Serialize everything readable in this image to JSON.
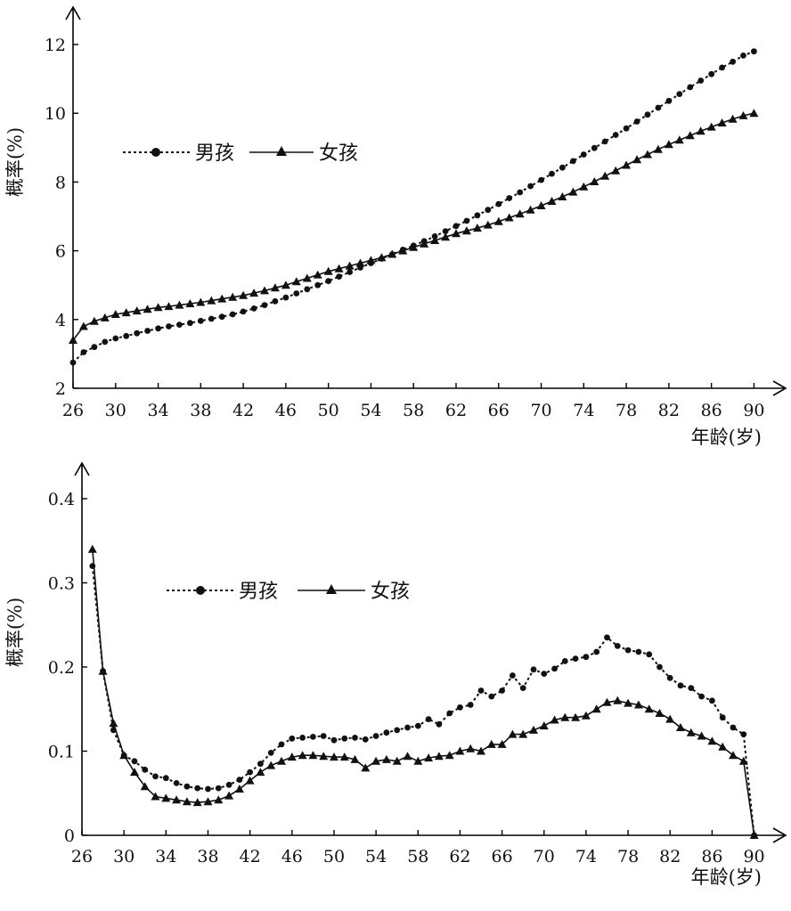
{
  "chart_data": [
    {
      "type": "line",
      "xlabel": "年龄(岁)",
      "ylabel": "概率(%)",
      "xlim": [
        26,
        92
      ],
      "ylim": [
        2,
        13
      ],
      "xticks": [
        "26",
        "30",
        "34",
        "38",
        "42",
        "46",
        "50",
        "54",
        "58",
        "62",
        "66",
        "70",
        "74",
        "78",
        "82",
        "86",
        "90"
      ],
      "yticks": [
        "2",
        "4",
        "6",
        "8",
        "10",
        "12"
      ],
      "legend": {
        "boys": "男孩",
        "girls": "女孩"
      },
      "series": [
        {
          "name": "男孩",
          "marker": "circle",
          "style": "dotted",
          "x": [
            26,
            27,
            28,
            29,
            30,
            31,
            32,
            33,
            34,
            35,
            36,
            37,
            38,
            39,
            40,
            41,
            42,
            43,
            44,
            45,
            46,
            47,
            48,
            49,
            50,
            51,
            52,
            53,
            54,
            55,
            56,
            57,
            58,
            59,
            60,
            61,
            62,
            63,
            64,
            65,
            66,
            67,
            68,
            69,
            70,
            71,
            72,
            73,
            74,
            75,
            76,
            77,
            78,
            79,
            80,
            81,
            82,
            83,
            84,
            85,
            86,
            87,
            88,
            89,
            90
          ],
          "y": [
            2.75,
            3.05,
            3.2,
            3.35,
            3.45,
            3.52,
            3.6,
            3.67,
            3.74,
            3.8,
            3.85,
            3.9,
            3.96,
            4.02,
            4.08,
            4.15,
            4.23,
            4.32,
            4.42,
            4.53,
            4.64,
            4.76,
            4.88,
            5.0,
            5.12,
            5.25,
            5.38,
            5.51,
            5.64,
            5.77,
            5.9,
            6.03,
            6.15,
            6.28,
            6.42,
            6.57,
            6.72,
            6.87,
            7.03,
            7.19,
            7.36,
            7.53,
            7.7,
            7.88,
            8.06,
            8.24,
            8.42,
            8.61,
            8.8,
            8.99,
            9.18,
            9.37,
            9.56,
            9.76,
            9.96,
            10.16,
            10.36,
            10.56,
            10.76,
            10.95,
            11.14,
            11.33,
            11.5,
            11.68,
            11.8
          ]
        },
        {
          "name": "女孩",
          "marker": "triangle",
          "style": "solid",
          "x": [
            26,
            27,
            28,
            29,
            30,
            31,
            32,
            33,
            34,
            35,
            36,
            37,
            38,
            39,
            40,
            41,
            42,
            43,
            44,
            45,
            46,
            47,
            48,
            49,
            50,
            51,
            52,
            53,
            54,
            55,
            56,
            57,
            58,
            59,
            60,
            61,
            62,
            63,
            64,
            65,
            66,
            67,
            68,
            69,
            70,
            71,
            72,
            73,
            74,
            75,
            76,
            77,
            78,
            79,
            80,
            81,
            82,
            83,
            84,
            85,
            86,
            87,
            88,
            89,
            90
          ],
          "y": [
            3.4,
            3.8,
            3.95,
            4.05,
            4.15,
            4.2,
            4.25,
            4.3,
            4.35,
            4.38,
            4.42,
            4.46,
            4.5,
            4.55,
            4.6,
            4.65,
            4.7,
            4.77,
            4.84,
            4.92,
            5.0,
            5.1,
            5.2,
            5.3,
            5.4,
            5.48,
            5.56,
            5.64,
            5.72,
            5.8,
            5.9,
            6.0,
            6.1,
            6.2,
            6.3,
            6.4,
            6.5,
            6.58,
            6.66,
            6.75,
            6.85,
            6.96,
            7.07,
            7.19,
            7.31,
            7.44,
            7.57,
            7.71,
            7.86,
            8.01,
            8.17,
            8.33,
            8.49,
            8.65,
            8.8,
            8.95,
            9.09,
            9.22,
            9.35,
            9.48,
            9.6,
            9.72,
            9.83,
            9.93,
            10.0
          ]
        }
      ]
    },
    {
      "type": "line",
      "xlabel": "年龄(岁)",
      "ylabel": "概率(%)",
      "xlim": [
        26,
        92
      ],
      "ylim": [
        0,
        0.43
      ],
      "xticks": [
        "26",
        "30",
        "34",
        "38",
        "42",
        "46",
        "50",
        "54",
        "58",
        "62",
        "66",
        "70",
        "74",
        "78",
        "82",
        "86",
        "90"
      ],
      "yticks": [
        "0",
        "0.1",
        "0.2",
        "0.3",
        "0.4"
      ],
      "legend": {
        "boys": "男孩",
        "girls": "女孩"
      },
      "series": [
        {
          "name": "男孩",
          "marker": "circle",
          "style": "dotted",
          "x": [
            27,
            28,
            29,
            30,
            31,
            32,
            33,
            34,
            35,
            36,
            37,
            38,
            39,
            40,
            41,
            42,
            43,
            44,
            45,
            46,
            47,
            48,
            49,
            50,
            51,
            52,
            53,
            54,
            55,
            56,
            57,
            58,
            59,
            60,
            61,
            62,
            63,
            64,
            65,
            66,
            67,
            68,
            69,
            70,
            71,
            72,
            73,
            74,
            75,
            76,
            77,
            78,
            79,
            80,
            81,
            82,
            83,
            84,
            85,
            86,
            87,
            88,
            89,
            90
          ],
          "y": [
            0.32,
            0.195,
            0.125,
            0.095,
            0.088,
            0.078,
            0.07,
            0.068,
            0.062,
            0.058,
            0.056,
            0.055,
            0.056,
            0.06,
            0.066,
            0.075,
            0.085,
            0.098,
            0.108,
            0.115,
            0.116,
            0.117,
            0.118,
            0.113,
            0.115,
            0.116,
            0.114,
            0.118,
            0.122,
            0.125,
            0.128,
            0.13,
            0.138,
            0.132,
            0.145,
            0.152,
            0.155,
            0.172,
            0.165,
            0.172,
            0.19,
            0.175,
            0.197,
            0.192,
            0.198,
            0.207,
            0.21,
            0.212,
            0.218,
            0.235,
            0.225,
            0.22,
            0.218,
            0.215,
            0.2,
            0.187,
            0.178,
            0.175,
            0.165,
            0.16,
            0.14,
            0.128,
            0.12,
            0.0
          ]
        },
        {
          "name": "女孩",
          "marker": "triangle",
          "style": "solid",
          "x": [
            27,
            28,
            29,
            30,
            31,
            32,
            33,
            34,
            35,
            36,
            37,
            38,
            39,
            40,
            41,
            42,
            43,
            44,
            45,
            46,
            47,
            48,
            49,
            50,
            51,
            52,
            53,
            54,
            55,
            56,
            57,
            58,
            59,
            60,
            61,
            62,
            63,
            64,
            65,
            66,
            67,
            68,
            69,
            70,
            71,
            72,
            73,
            74,
            75,
            76,
            77,
            78,
            79,
            80,
            81,
            82,
            83,
            84,
            85,
            86,
            87,
            88,
            89,
            90
          ],
          "y": [
            0.34,
            0.195,
            0.133,
            0.095,
            0.075,
            0.058,
            0.046,
            0.044,
            0.042,
            0.04,
            0.039,
            0.04,
            0.042,
            0.047,
            0.055,
            0.065,
            0.075,
            0.083,
            0.088,
            0.093,
            0.095,
            0.095,
            0.094,
            0.093,
            0.093,
            0.09,
            0.08,
            0.088,
            0.09,
            0.088,
            0.094,
            0.088,
            0.092,
            0.094,
            0.095,
            0.1,
            0.103,
            0.1,
            0.108,
            0.108,
            0.12,
            0.12,
            0.125,
            0.13,
            0.137,
            0.14,
            0.14,
            0.142,
            0.15,
            0.158,
            0.16,
            0.157,
            0.155,
            0.15,
            0.145,
            0.138,
            0.128,
            0.122,
            0.118,
            0.112,
            0.105,
            0.095,
            0.088,
            0.0
          ]
        }
      ]
    }
  ]
}
